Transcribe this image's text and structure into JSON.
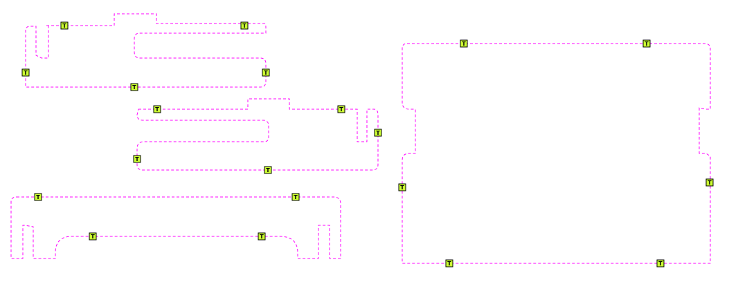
{
  "colors": {
    "cut_line": "#ff00ff",
    "tab_fill": "#ccff33",
    "background": "#ffffff"
  },
  "tab_marker": {
    "label": "T",
    "icon": "tab-marker-icon"
  },
  "parts": [
    {
      "id": "part-1",
      "tab_count": 5
    },
    {
      "id": "part-2",
      "tab_count": 5
    },
    {
      "id": "part-3",
      "tab_count": 4
    },
    {
      "id": "part-4",
      "tab_count": 6
    }
  ]
}
